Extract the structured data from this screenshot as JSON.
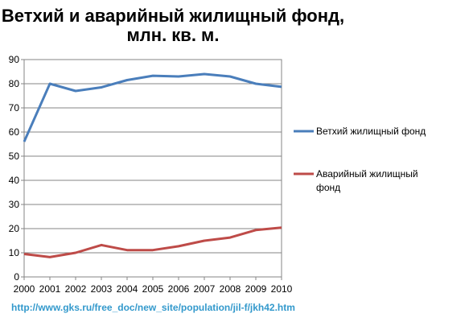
{
  "chart_data": {
    "type": "line",
    "title_line1": "Ветхий и аварийный жилищный фонд,",
    "title_line2": "млн. кв. м.",
    "x": [
      "2000",
      "2001",
      "2002",
      "2003",
      "2004",
      "2005",
      "2006",
      "2007",
      "2008",
      "2009",
      "2010"
    ],
    "ylim": [
      0,
      90
    ],
    "yticks": [
      0,
      10,
      20,
      30,
      40,
      50,
      60,
      70,
      80,
      90
    ],
    "grid": true,
    "legend_position": "right",
    "series": [
      {
        "name": "Ветхий жилищный фонд",
        "color": "#4a7ebb",
        "values": [
          56,
          80,
          77,
          78.5,
          81.5,
          83.3,
          83,
          84,
          83,
          80,
          78.7
        ]
      },
      {
        "name": "Аварийный жилищный фонд",
        "legend_line1": "Аварийный жилищный",
        "legend_line2": "фонд",
        "color": "#be4b48",
        "values": [
          9.5,
          8.2,
          10,
          13.2,
          11.1,
          11.1,
          12.7,
          15,
          16.3,
          19.4,
          20.4
        ]
      }
    ],
    "source": "http://www.gks.ru/free_doc/new_site/population/jil-f/jkh42.htm"
  }
}
